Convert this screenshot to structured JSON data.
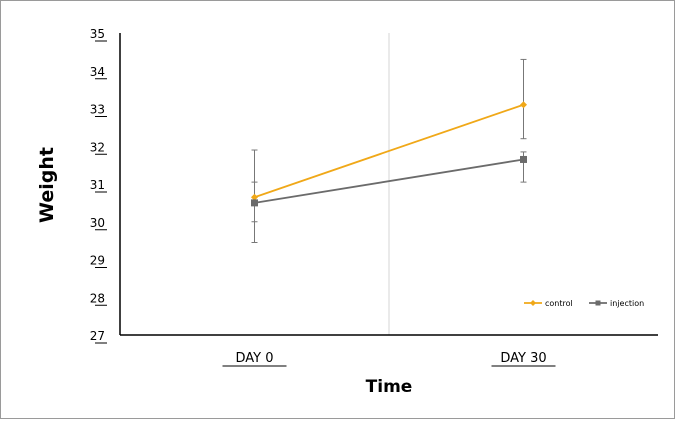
{
  "chart_data": {
    "type": "line",
    "xlabel": "Time",
    "ylabel": "Weight",
    "categories": [
      "DAY 0",
      "DAY 30"
    ],
    "ylim": [
      27,
      35
    ],
    "yticks": [
      27,
      28,
      29,
      30,
      31,
      32,
      33,
      34,
      35
    ],
    "grid": false,
    "legend_position": "bottom-right",
    "series": [
      {
        "name": "control",
        "color": "#f0a818",
        "marker": "diamond",
        "values": [
          30.65,
          33.1
        ],
        "error": [
          [
            30.0,
            31.9
          ],
          [
            32.2,
            34.3
          ]
        ]
      },
      {
        "name": "injection",
        "color": "#6b6b6b",
        "marker": "square",
        "values": [
          30.5,
          31.65
        ],
        "error": [
          [
            29.45,
            31.05
          ],
          [
            31.05,
            31.85
          ]
        ]
      }
    ]
  }
}
